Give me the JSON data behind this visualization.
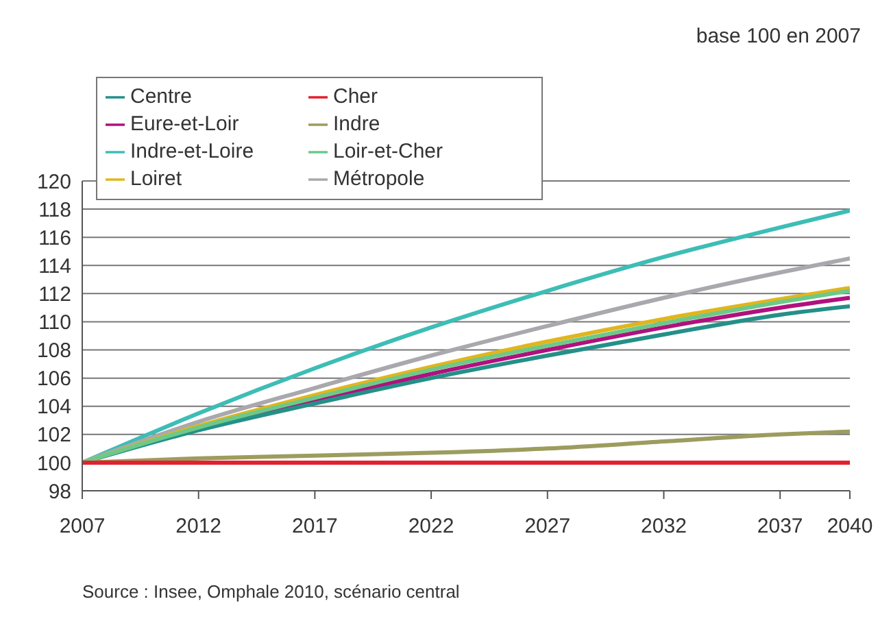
{
  "chart_data": {
    "type": "line",
    "x": [
      2007,
      2012,
      2017,
      2022,
      2027,
      2032,
      2037,
      2040
    ],
    "series": [
      {
        "name": "Indre-et-Loire",
        "color": "#3dbdb5",
        "values": [
          100,
          103.5,
          106.7,
          109.6,
          112.2,
          114.6,
          116.7,
          117.9
        ]
      },
      {
        "name": "Eure-et-Loir",
        "color": "#b0107e",
        "values": [
          100,
          102.4,
          104.4,
          106.3,
          108.0,
          109.6,
          111.0,
          111.7
        ]
      },
      {
        "name": "Métropole",
        "color": "#a9a9ad",
        "values": [
          100,
          102.9,
          105.3,
          107.6,
          109.7,
          111.7,
          113.5,
          114.5
        ]
      },
      {
        "name": "Centre",
        "color": "#249088",
        "values": [
          100,
          102.3,
          104.2,
          106.0,
          107.6,
          109.1,
          110.5,
          111.1
        ]
      },
      {
        "name": "Loiret",
        "color": "#e0b61e",
        "values": [
          100,
          102.6,
          104.8,
          106.8,
          108.6,
          110.2,
          111.6,
          112.4
        ]
      },
      {
        "name": "Indre",
        "color": "#9c9c5e",
        "values": [
          100,
          100.3,
          100.5,
          100.7,
          101.0,
          101.5,
          102.0,
          102.2
        ]
      },
      {
        "name": "Loir-et-Cher",
        "color": "#6cc98a",
        "values": [
          100,
          102.5,
          104.6,
          106.6,
          108.3,
          109.9,
          111.4,
          112.2
        ]
      },
      {
        "name": "Cher",
        "color": "#e3202e",
        "values": [
          100,
          100,
          100,
          100,
          100,
          100,
          100,
          100
        ]
      }
    ],
    "xlim": [
      2007,
      2040
    ],
    "xticks": [
      2007,
      2012,
      2017,
      2022,
      2027,
      2032,
      2037,
      2040
    ],
    "ylim": [
      98,
      120
    ],
    "yticks": [
      98,
      100,
      102,
      104,
      106,
      108,
      110,
      112,
      114,
      116,
      118,
      120
    ],
    "grid": "y",
    "legend": "top left",
    "marker": "none",
    "line_style": "solid",
    "annotations": [
      "base 100 en 2007",
      "Source : Insee, Omphale 2010, scénario central"
    ]
  }
}
